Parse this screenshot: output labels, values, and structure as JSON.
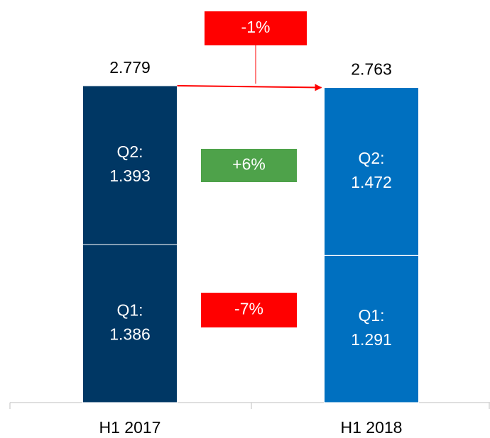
{
  "chart_data": {
    "type": "bar",
    "stacked": true,
    "categories": [
      "H1 2017",
      "H1 2018"
    ],
    "colors": [
      "#003764",
      "#0070c0"
    ],
    "series": [
      {
        "name": "Q1:",
        "values": [
          1.386,
          1.291
        ]
      },
      {
        "name": "Q2:",
        "values": [
          1.393,
          1.472
        ]
      }
    ],
    "totals": [
      2.779,
      2.763
    ],
    "ylim": [
      0,
      3.5
    ],
    "annotations": [
      {
        "text": "-1%",
        "color": "#ff0000"
      },
      {
        "text": "+6%",
        "color": "#4ea24a"
      },
      {
        "text": "-7%",
        "color": "#ff0000"
      }
    ]
  }
}
